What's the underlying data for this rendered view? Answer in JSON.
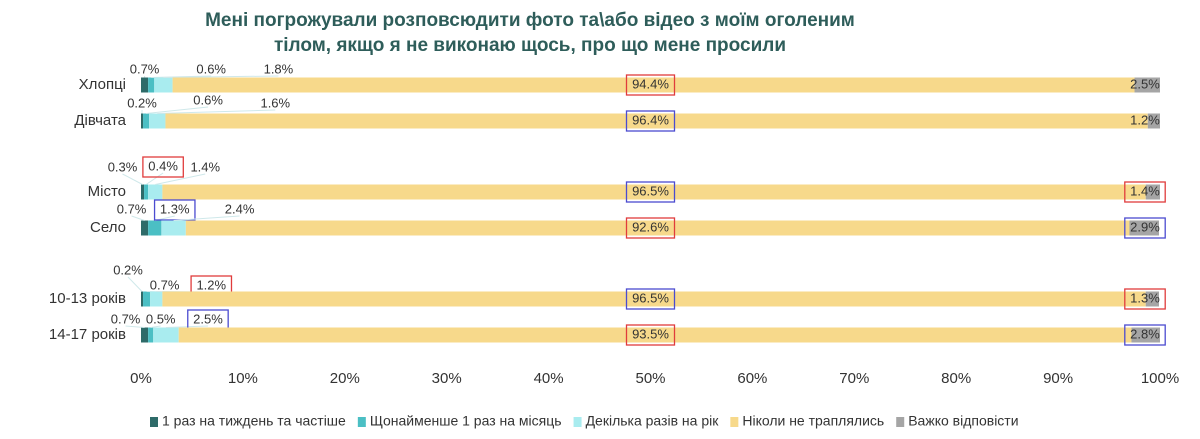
{
  "chart_data": {
    "type": "bar",
    "orientation": "horizontal",
    "stacked": true,
    "percent": true,
    "title": "Мені погрожували розповсюдити фото та\\або відео з моїм оголеним тілом, якщо я не виконаю щось, про що мене просили",
    "categories": [
      "Хлопці",
      "Дівчата",
      "Місто",
      "Село",
      "10-13 років",
      "14-17 років"
    ],
    "series": [
      {
        "name": "1 раз на тиждень та частіше",
        "color": "#2e6b69",
        "values": [
          0.7,
          0.2,
          0.3,
          0.7,
          0.2,
          0.7
        ]
      },
      {
        "name": "Щонайменше 1 раз на місяць",
        "color": "#4bbfc4",
        "values": [
          0.6,
          0.6,
          0.4,
          1.3,
          0.7,
          0.5
        ]
      },
      {
        "name": "Декілька разів на рік",
        "color": "#a9ecef",
        "values": [
          1.8,
          1.6,
          1.4,
          2.4,
          1.2,
          2.5
        ]
      },
      {
        "name": "Ніколи не траплялись",
        "color": "#f7d98b",
        "values": [
          94.4,
          96.4,
          96.5,
          92.6,
          96.5,
          93.5
        ]
      },
      {
        "name": "Важко відповісти",
        "color": "#a5a5a5",
        "values": [
          2.5,
          1.2,
          1.4,
          2.9,
          1.3,
          2.8
        ]
      }
    ],
    "data_labels": [
      [
        "0.7%",
        "0.6%",
        "1.8%",
        "94.4%",
        "2.5%"
      ],
      [
        "0.2%",
        "0.6%",
        "1.6%",
        "96.4%",
        "1.2%"
      ],
      [
        "0.3%",
        "0.4%",
        "1.4%",
        "96.5%",
        "1.4%"
      ],
      [
        "0.7%",
        "1.3%",
        "2.4%",
        "92.6%",
        "2.9%"
      ],
      [
        "0.2%",
        "0.7%",
        "1.2%",
        "96.5%",
        "1.3%"
      ],
      [
        "0.7%",
        "0.5%",
        "2.5%",
        "93.5%",
        "2.8%"
      ]
    ],
    "highlight_colors": {
      "red": "#e03c3c",
      "blue": "#4b4bd0"
    },
    "highlights": [
      [
        null,
        null,
        null,
        "red",
        null
      ],
      [
        null,
        null,
        null,
        "blue",
        null
      ],
      [
        null,
        "red",
        null,
        "blue",
        "red"
      ],
      [
        null,
        "blue",
        null,
        "red",
        "blue"
      ],
      [
        null,
        null,
        "red",
        "blue",
        "red"
      ],
      [
        null,
        null,
        "blue",
        "red",
        "blue"
      ]
    ],
    "x_ticks": [
      "0%",
      "10%",
      "20%",
      "30%",
      "40%",
      "50%",
      "60%",
      "70%",
      "80%",
      "90%",
      "100%"
    ],
    "xlim": [
      0,
      100
    ],
    "grid": false,
    "legend_position": "bottom"
  }
}
